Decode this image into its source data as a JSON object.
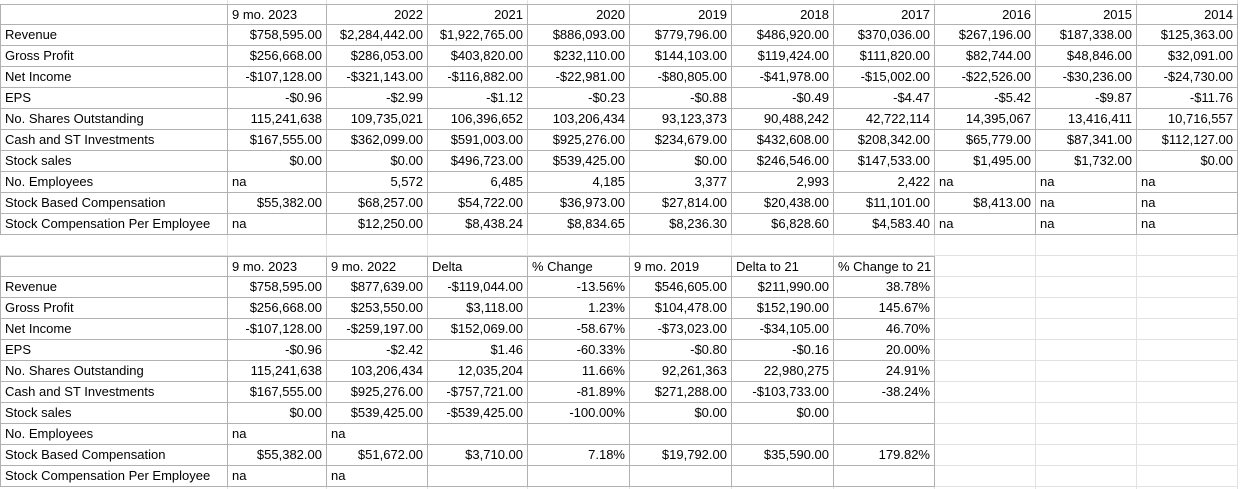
{
  "sheet": {
    "background": "#ffffff",
    "gridline_color": "#e2e2e2",
    "table_border_color": "#b1b1b1",
    "text_color": "#000000",
    "na_text": "na"
  },
  "tables": [
    {
      "name": "annual-history",
      "headers": [
        "",
        "9 mo. 2023",
        "2022",
        "2021",
        "2020",
        "2019",
        "2018",
        "2017",
        "2016",
        "2015",
        "2014"
      ],
      "trailing_empty_columns": 0,
      "rows": [
        {
          "label": "Revenue",
          "cells": [
            "$758,595.00",
            "$2,284,442.00",
            "$1,922,765.00",
            "$886,093.00",
            "$779,796.00",
            "$486,920.00",
            "$370,036.00",
            "$267,196.00",
            "$187,338.00",
            "$125,363.00"
          ]
        },
        {
          "label": "Gross Profit",
          "cells": [
            "$256,668.00",
            "$286,053.00",
            "$403,820.00",
            "$232,110.00",
            "$144,103.00",
            "$119,424.00",
            "$111,820.00",
            "$82,744.00",
            "$48,846.00",
            "$32,091.00"
          ]
        },
        {
          "label": "Net Income",
          "cells": [
            "-$107,128.00",
            "-$321,143.00",
            "-$116,882.00",
            "-$22,981.00",
            "-$80,805.00",
            "-$41,978.00",
            "-$15,002.00",
            "-$22,526.00",
            "-$30,236.00",
            "-$24,730.00"
          ]
        },
        {
          "label": "EPS",
          "cells": [
            "-$0.96",
            "-$2.99",
            "-$1.12",
            "-$0.23",
            "-$0.88",
            "-$0.49",
            "-$4.47",
            "-$5.42",
            "-$9.87",
            "-$11.76"
          ]
        },
        {
          "label": "No. Shares Outstanding",
          "cells": [
            "115,241,638",
            "109,735,021",
            "106,396,652",
            "103,206,434",
            "93,123,373",
            "90,488,242",
            "42,722,114",
            "14,395,067",
            "13,416,411",
            "10,716,557"
          ]
        },
        {
          "label": "Cash and ST Investments",
          "cells": [
            "$167,555.00",
            "$362,099.00",
            "$591,003.00",
            "$925,276.00",
            "$234,679.00",
            "$432,608.00",
            "$208,342.00",
            "$65,779.00",
            "$87,341.00",
            "$112,127.00"
          ]
        },
        {
          "label": "Stock sales",
          "cells": [
            "$0.00",
            "$0.00",
            "$496,723.00",
            "$539,425.00",
            "$0.00",
            "$246,546.00",
            "$147,533.00",
            "$1,495.00",
            "$1,732.00",
            "$0.00"
          ]
        },
        {
          "label": "No. Employees",
          "cells": [
            "na",
            "5,572",
            "6,485",
            "4,185",
            "3,377",
            "2,993",
            "2,422",
            "na",
            "na",
            "na"
          ]
        },
        {
          "label": "Stock Based Compensation",
          "cells": [
            "$55,382.00",
            "$68,257.00",
            "$54,722.00",
            "$36,973.00",
            "$27,814.00",
            "$20,438.00",
            "$11,101.00",
            "$8,413.00",
            "na",
            "na"
          ]
        },
        {
          "label": "Stock Compensation Per Employee",
          "cells": [
            "na",
            "$12,250.00",
            "$8,438.24",
            "$8,834.65",
            "$8,236.30",
            "$6,828.60",
            "$4,583.40",
            "na",
            "na",
            "na"
          ]
        }
      ]
    },
    {
      "name": "nine-month-comparison",
      "headers": [
        "",
        "9 mo. 2023",
        "9 mo. 2022",
        "Delta",
        "% Change",
        "9 mo. 2019",
        "Delta to 21",
        "% Change to 21"
      ],
      "trailing_empty_columns": 3,
      "rows": [
        {
          "label": "Revenue",
          "cells": [
            "$758,595.00",
            "$877,639.00",
            "-$119,044.00",
            "-13.56%",
            "$546,605.00",
            "$211,990.00",
            "38.78%"
          ]
        },
        {
          "label": "Gross Profit",
          "cells": [
            "$256,668.00",
            "$253,550.00",
            "$3,118.00",
            "1.23%",
            "$104,478.00",
            "$152,190.00",
            "145.67%"
          ]
        },
        {
          "label": "Net Income",
          "cells": [
            "-$107,128.00",
            "-$259,197.00",
            "$152,069.00",
            "-58.67%",
            "-$73,023.00",
            "-$34,105.00",
            "46.70%"
          ]
        },
        {
          "label": "EPS",
          "cells": [
            "-$0.96",
            "-$2.42",
            "$1.46",
            "-60.33%",
            "-$0.80",
            "-$0.16",
            "20.00%"
          ]
        },
        {
          "label": "No. Shares Outstanding",
          "cells": [
            "115,241,638",
            "103,206,434",
            "12,035,204",
            "11.66%",
            "92,261,363",
            "22,980,275",
            "24.91%"
          ]
        },
        {
          "label": "Cash and ST Investments",
          "cells": [
            "$167,555.00",
            "$925,276.00",
            "-$757,721.00",
            "-81.89%",
            "$271,288.00",
            "-$103,733.00",
            "-38.24%"
          ]
        },
        {
          "label": "Stock sales",
          "cells": [
            "$0.00",
            "$539,425.00",
            "-$539,425.00",
            "-100.00%",
            "$0.00",
            "$0.00",
            ""
          ]
        },
        {
          "label": "No. Employees",
          "cells": [
            "na",
            "na",
            "",
            "",
            "",
            "",
            ""
          ]
        },
        {
          "label": "Stock Based Compensation",
          "cells": [
            "$55,382.00",
            "$51,672.00",
            "$3,710.00",
            "7.18%",
            "$19,792.00",
            "$35,590.00",
            "179.82%"
          ]
        },
        {
          "label": "Stock Compensation Per Employee",
          "cells": [
            "na",
            "na",
            "",
            "",
            "",
            "",
            ""
          ]
        }
      ]
    }
  ]
}
